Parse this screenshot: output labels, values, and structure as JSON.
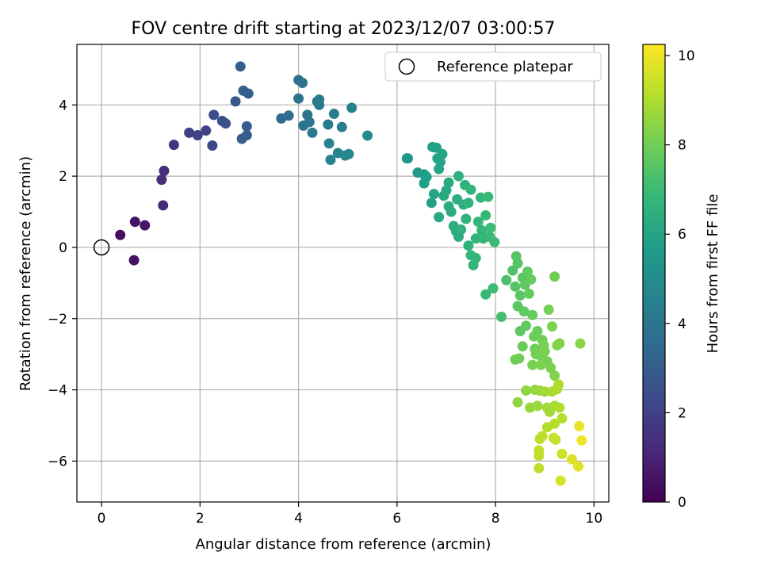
{
  "chart_data": {
    "type": "scatter",
    "title": "FOV centre drift starting at 2023/12/07 03:00:57",
    "xlabel": "Angular distance from reference (arcmin)",
    "ylabel": "Rotation from reference (arcmin)",
    "xlim": [
      -0.5,
      10.3
    ],
    "ylim": [
      -7.15,
      5.7
    ],
    "xticks": [
      0,
      2,
      4,
      6,
      8,
      10
    ],
    "yticks": [
      4,
      2,
      0,
      -2,
      -4,
      -6
    ],
    "xtick_labels": [
      "0",
      "2",
      "4",
      "6",
      "8",
      "10"
    ],
    "ytick_labels": [
      "4",
      "2",
      "0",
      "−2",
      "−4",
      "−6"
    ],
    "grid": true,
    "legend": {
      "entry": "Reference platepar",
      "position": "upper-right",
      "marker": "open-circle"
    },
    "reference_point": {
      "x": 0,
      "y": 0
    },
    "colorbar": {
      "label": "Hours from first FF file",
      "range": [
        0,
        10.25
      ],
      "ticks": [
        0,
        2,
        4,
        6,
        8,
        10
      ],
      "tick_labels": [
        "0",
        "2",
        "4",
        "6",
        "8",
        "10"
      ],
      "colormap": "viridis",
      "stops": [
        "#440154",
        "#482878",
        "#3e4989",
        "#31688e",
        "#26828e",
        "#1f9e89",
        "#35b779",
        "#6ece58",
        "#b5de2b",
        "#fde725"
      ]
    },
    "series": [
      {
        "points": [
          {
            "x": 0.38,
            "y": 0.35,
            "t": 0.3
          },
          {
            "x": 0.68,
            "y": 0.72,
            "t": 0.5
          },
          {
            "x": 0.88,
            "y": 0.62,
            "t": 0.6
          },
          {
            "x": 0.66,
            "y": -0.36,
            "t": 0.5
          },
          {
            "x": 1.25,
            "y": 1.18,
            "t": 1.2
          },
          {
            "x": 1.22,
            "y": 1.9,
            "t": 1.3
          },
          {
            "x": 1.27,
            "y": 2.15,
            "t": 1.4
          },
          {
            "x": 1.47,
            "y": 2.88,
            "t": 1.6
          },
          {
            "x": 1.78,
            "y": 3.22,
            "t": 1.9
          },
          {
            "x": 1.95,
            "y": 3.15,
            "t": 2.0
          },
          {
            "x": 2.12,
            "y": 3.28,
            "t": 2.1
          },
          {
            "x": 2.25,
            "y": 2.86,
            "t": 2.2
          },
          {
            "x": 2.28,
            "y": 3.72,
            "t": 2.4
          },
          {
            "x": 2.45,
            "y": 3.55,
            "t": 2.5
          },
          {
            "x": 2.52,
            "y": 3.48,
            "t": 2.5
          },
          {
            "x": 2.72,
            "y": 4.1,
            "t": 2.8
          },
          {
            "x": 2.82,
            "y": 5.08,
            "t": 3.0
          },
          {
            "x": 2.88,
            "y": 4.4,
            "t": 3.1
          },
          {
            "x": 2.98,
            "y": 4.32,
            "t": 3.1
          },
          {
            "x": 2.95,
            "y": 3.4,
            "t": 3.0
          },
          {
            "x": 2.95,
            "y": 3.15,
            "t": 3.0
          },
          {
            "x": 2.85,
            "y": 3.05,
            "t": 3.0
          },
          {
            "x": 3.65,
            "y": 3.62,
            "t": 3.5
          },
          {
            "x": 3.8,
            "y": 3.7,
            "t": 3.6
          },
          {
            "x": 4.0,
            "y": 4.7,
            "t": 3.8
          },
          {
            "x": 4.08,
            "y": 4.62,
            "t": 3.8
          },
          {
            "x": 4.0,
            "y": 4.18,
            "t": 3.9
          },
          {
            "x": 4.1,
            "y": 3.42,
            "t": 3.9
          },
          {
            "x": 4.22,
            "y": 3.52,
            "t": 4.0
          },
          {
            "x": 4.18,
            "y": 3.72,
            "t": 4.0
          },
          {
            "x": 4.38,
            "y": 4.1,
            "t": 4.1
          },
          {
            "x": 4.42,
            "y": 4.0,
            "t": 4.1
          },
          {
            "x": 4.42,
            "y": 4.15,
            "t": 4.2
          },
          {
            "x": 4.28,
            "y": 3.22,
            "t": 4.2
          },
          {
            "x": 4.6,
            "y": 3.45,
            "t": 4.3
          },
          {
            "x": 4.72,
            "y": 3.75,
            "t": 4.4
          },
          {
            "x": 4.88,
            "y": 3.38,
            "t": 4.4
          },
          {
            "x": 4.62,
            "y": 2.92,
            "t": 4.5
          },
          {
            "x": 4.65,
            "y": 2.46,
            "t": 4.6
          },
          {
            "x": 4.8,
            "y": 2.65,
            "t": 4.6
          },
          {
            "x": 4.95,
            "y": 2.58,
            "t": 4.7
          },
          {
            "x": 5.02,
            "y": 2.62,
            "t": 4.7
          },
          {
            "x": 5.08,
            "y": 3.92,
            "t": 4.6
          },
          {
            "x": 5.4,
            "y": 3.14,
            "t": 4.9
          },
          {
            "x": 6.2,
            "y": 2.5,
            "t": 5.4
          },
          {
            "x": 6.22,
            "y": 2.5,
            "t": 5.4
          },
          {
            "x": 6.42,
            "y": 2.1,
            "t": 5.6
          },
          {
            "x": 6.55,
            "y": 2.05,
            "t": 5.7
          },
          {
            "x": 6.6,
            "y": 1.98,
            "t": 5.7
          },
          {
            "x": 6.72,
            "y": 2.82,
            "t": 5.8
          },
          {
            "x": 6.8,
            "y": 2.8,
            "t": 5.9
          },
          {
            "x": 6.82,
            "y": 2.5,
            "t": 5.9
          },
          {
            "x": 6.88,
            "y": 2.4,
            "t": 6.0
          },
          {
            "x": 6.92,
            "y": 2.62,
            "t": 6.0
          },
          {
            "x": 6.85,
            "y": 2.2,
            "t": 6.0
          },
          {
            "x": 6.55,
            "y": 1.8,
            "t": 5.8
          },
          {
            "x": 6.7,
            "y": 1.25,
            "t": 5.9
          },
          {
            "x": 6.75,
            "y": 1.5,
            "t": 6.0
          },
          {
            "x": 6.85,
            "y": 0.85,
            "t": 6.1
          },
          {
            "x": 6.95,
            "y": 1.45,
            "t": 6.2
          },
          {
            "x": 7.0,
            "y": 1.6,
            "t": 6.2
          },
          {
            "x": 7.05,
            "y": 1.82,
            "t": 6.3
          },
          {
            "x": 7.05,
            "y": 1.15,
            "t": 6.3
          },
          {
            "x": 7.1,
            "y": 1.0,
            "t": 6.3
          },
          {
            "x": 7.15,
            "y": 0.6,
            "t": 6.4
          },
          {
            "x": 7.2,
            "y": 0.45,
            "t": 6.4
          },
          {
            "x": 7.25,
            "y": 0.3,
            "t": 6.4
          },
          {
            "x": 7.22,
            "y": 1.35,
            "t": 6.4
          },
          {
            "x": 7.25,
            "y": 2.0,
            "t": 6.5
          },
          {
            "x": 7.3,
            "y": 0.5,
            "t": 6.5
          },
          {
            "x": 7.35,
            "y": 1.2,
            "t": 6.5
          },
          {
            "x": 7.38,
            "y": 1.75,
            "t": 6.6
          },
          {
            "x": 7.4,
            "y": 0.8,
            "t": 6.6
          },
          {
            "x": 7.45,
            "y": 1.25,
            "t": 6.6
          },
          {
            "x": 7.5,
            "y": 1.62,
            "t": 6.7
          },
          {
            "x": 7.45,
            "y": 0.05,
            "t": 6.6
          },
          {
            "x": 7.5,
            "y": -0.22,
            "t": 6.7
          },
          {
            "x": 7.55,
            "y": -0.5,
            "t": 6.7
          },
          {
            "x": 7.6,
            "y": -0.3,
            "t": 6.7
          },
          {
            "x": 7.6,
            "y": 0.25,
            "t": 6.7
          },
          {
            "x": 7.65,
            "y": 0.72,
            "t": 6.8
          },
          {
            "x": 7.7,
            "y": 1.4,
            "t": 6.8
          },
          {
            "x": 7.72,
            "y": 0.48,
            "t": 6.8
          },
          {
            "x": 7.75,
            "y": 0.25,
            "t": 6.8
          },
          {
            "x": 7.8,
            "y": 0.9,
            "t": 6.9
          },
          {
            "x": 7.8,
            "y": -1.32,
            "t": 6.9
          },
          {
            "x": 7.85,
            "y": 1.42,
            "t": 6.9
          },
          {
            "x": 7.88,
            "y": 0.3,
            "t": 6.9
          },
          {
            "x": 7.9,
            "y": 0.55,
            "t": 7.0
          },
          {
            "x": 7.95,
            "y": -1.15,
            "t": 7.0
          },
          {
            "x": 7.98,
            "y": 0.15,
            "t": 7.0
          },
          {
            "x": 8.12,
            "y": -1.95,
            "t": 7.2
          },
          {
            "x": 8.22,
            "y": -0.92,
            "t": 7.3
          },
          {
            "x": 8.35,
            "y": -0.65,
            "t": 7.4
          },
          {
            "x": 8.4,
            "y": -1.1,
            "t": 7.5
          },
          {
            "x": 8.42,
            "y": -0.25,
            "t": 7.5
          },
          {
            "x": 8.45,
            "y": -0.45,
            "t": 7.5
          },
          {
            "x": 8.45,
            "y": -1.65,
            "t": 7.6
          },
          {
            "x": 8.5,
            "y": -2.35,
            "t": 7.6
          },
          {
            "x": 8.5,
            "y": -1.35,
            "t": 7.6
          },
          {
            "x": 8.55,
            "y": -0.85,
            "t": 7.6
          },
          {
            "x": 8.58,
            "y": -1.8,
            "t": 7.7
          },
          {
            "x": 8.6,
            "y": -1.05,
            "t": 7.7
          },
          {
            "x": 8.62,
            "y": -2.2,
            "t": 7.7
          },
          {
            "x": 8.65,
            "y": -0.68,
            "t": 7.7
          },
          {
            "x": 8.68,
            "y": -1.3,
            "t": 7.8
          },
          {
            "x": 8.72,
            "y": -0.9,
            "t": 7.8
          },
          {
            "x": 8.75,
            "y": -1.9,
            "t": 7.8
          },
          {
            "x": 8.78,
            "y": -2.5,
            "t": 7.9
          },
          {
            "x": 8.8,
            "y": -2.85,
            "t": 7.9
          },
          {
            "x": 8.85,
            "y": -2.35,
            "t": 7.9
          },
          {
            "x": 8.55,
            "y": -2.78,
            "t": 7.9
          },
          {
            "x": 8.4,
            "y": -3.15,
            "t": 8.0
          },
          {
            "x": 8.48,
            "y": -3.12,
            "t": 8.0
          },
          {
            "x": 8.92,
            "y": -3.05,
            "t": 8.0
          },
          {
            "x": 8.95,
            "y": -2.6,
            "t": 8.0
          },
          {
            "x": 8.98,
            "y": -2.75,
            "t": 8.1
          },
          {
            "x": 9.0,
            "y": -2.92,
            "t": 8.1
          },
          {
            "x": 9.05,
            "y": -3.2,
            "t": 8.1
          },
          {
            "x": 9.08,
            "y": -1.75,
            "t": 8.1
          },
          {
            "x": 9.12,
            "y": -3.38,
            "t": 8.2
          },
          {
            "x": 9.15,
            "y": -2.22,
            "t": 8.2
          },
          {
            "x": 9.2,
            "y": -0.82,
            "t": 8.0
          },
          {
            "x": 8.75,
            "y": -3.3,
            "t": 8.1
          },
          {
            "x": 8.82,
            "y": -3.0,
            "t": 8.1
          },
          {
            "x": 8.92,
            "y": -3.3,
            "t": 8.2
          },
          {
            "x": 9.2,
            "y": -3.6,
            "t": 8.3
          },
          {
            "x": 9.25,
            "y": -2.75,
            "t": 8.3
          },
          {
            "x": 9.3,
            "y": -2.7,
            "t": 8.3
          },
          {
            "x": 9.72,
            "y": -2.7,
            "t": 8.4
          },
          {
            "x": 8.45,
            "y": -4.35,
            "t": 8.5
          },
          {
            "x": 8.62,
            "y": -4.02,
            "t": 8.5
          },
          {
            "x": 8.7,
            "y": -4.5,
            "t": 8.6
          },
          {
            "x": 8.8,
            "y": -4.0,
            "t": 8.6
          },
          {
            "x": 8.85,
            "y": -4.45,
            "t": 8.7
          },
          {
            "x": 8.9,
            "y": -4.02,
            "t": 8.7
          },
          {
            "x": 9.0,
            "y": -4.05,
            "t": 8.8
          },
          {
            "x": 9.05,
            "y": -4.5,
            "t": 8.8
          },
          {
            "x": 9.1,
            "y": -4.62,
            "t": 8.8
          },
          {
            "x": 9.15,
            "y": -4.05,
            "t": 8.9
          },
          {
            "x": 9.2,
            "y": -4.45,
            "t": 8.9
          },
          {
            "x": 9.25,
            "y": -3.98,
            "t": 9.0
          },
          {
            "x": 9.28,
            "y": -3.85,
            "t": 9.0
          },
          {
            "x": 9.3,
            "y": -4.5,
            "t": 9.0
          },
          {
            "x": 9.35,
            "y": -4.8,
            "t": 9.1
          },
          {
            "x": 9.2,
            "y": -4.95,
            "t": 9.1
          },
          {
            "x": 9.05,
            "y": -5.05,
            "t": 9.1
          },
          {
            "x": 8.95,
            "y": -5.3,
            "t": 9.2
          },
          {
            "x": 8.9,
            "y": -5.38,
            "t": 9.2
          },
          {
            "x": 8.88,
            "y": -5.7,
            "t": 9.3
          },
          {
            "x": 8.88,
            "y": -5.85,
            "t": 9.3
          },
          {
            "x": 8.88,
            "y": -6.2,
            "t": 9.3
          },
          {
            "x": 9.18,
            "y": -5.35,
            "t": 9.4
          },
          {
            "x": 9.22,
            "y": -5.4,
            "t": 9.4
          },
          {
            "x": 9.35,
            "y": -5.8,
            "t": 9.5
          },
          {
            "x": 9.32,
            "y": -6.55,
            "t": 9.6
          },
          {
            "x": 9.55,
            "y": -5.95,
            "t": 9.7
          },
          {
            "x": 9.68,
            "y": -6.15,
            "t": 9.8
          },
          {
            "x": 9.7,
            "y": -5.02,
            "t": 9.9
          },
          {
            "x": 9.75,
            "y": -5.42,
            "t": 10.0
          }
        ]
      }
    ]
  }
}
